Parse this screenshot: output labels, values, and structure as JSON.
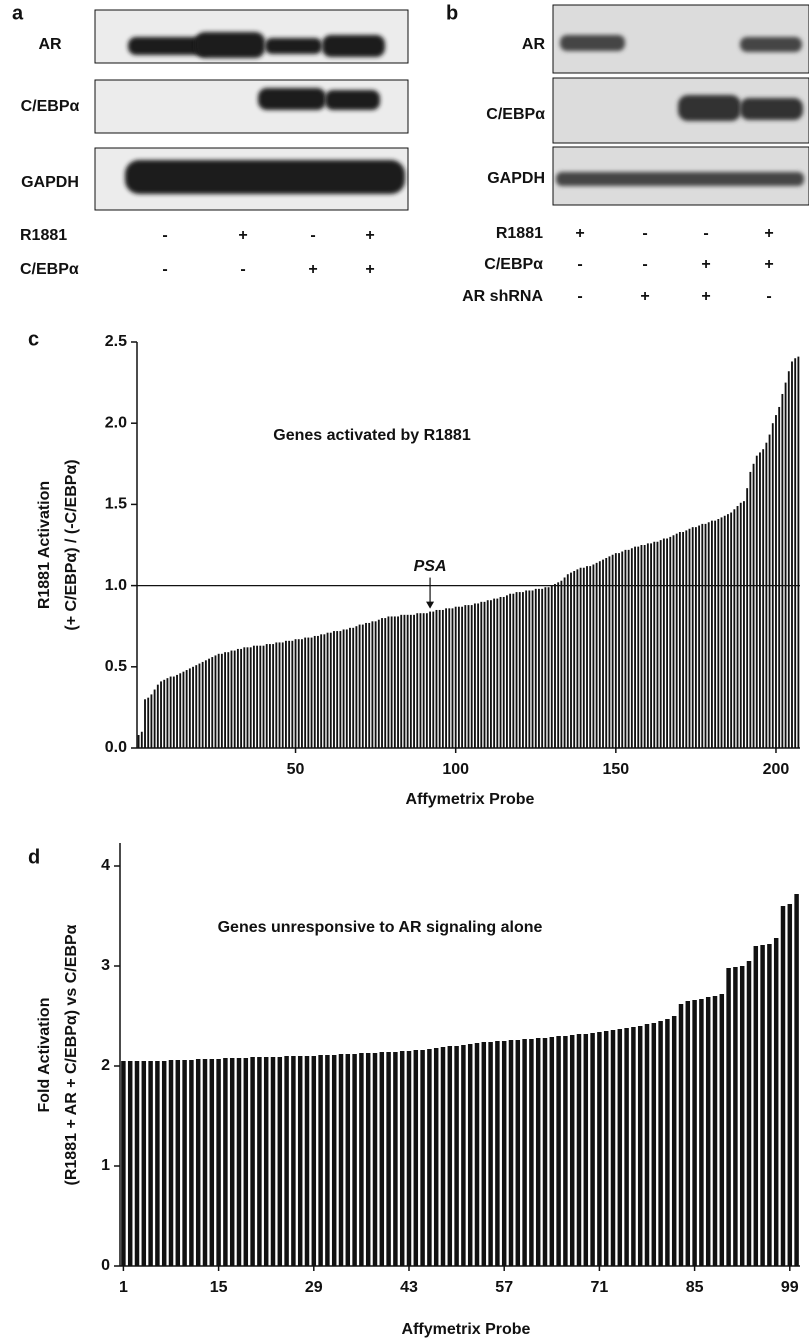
{
  "panel_a": {
    "label": "a",
    "rows": [
      "AR",
      "C/EBPα",
      "GAPDH"
    ],
    "conditions": [
      {
        "name": "R1881",
        "marks": [
          "-",
          "+",
          "-",
          "+"
        ]
      },
      {
        "name": "C/EBPα",
        "marks": [
          "-",
          "-",
          "+",
          "+"
        ]
      }
    ]
  },
  "panel_b": {
    "label": "b",
    "rows": [
      "AR",
      "C/EBPα",
      "GAPDH"
    ],
    "conditions": [
      {
        "name": "R1881",
        "marks": [
          "+",
          "-",
          "-",
          "+"
        ]
      },
      {
        "name": "C/EBPα",
        "marks": [
          "-",
          "-",
          "+",
          "+"
        ]
      },
      {
        "name": "AR shRNA",
        "marks": [
          "-",
          "+",
          "+",
          "-"
        ]
      }
    ]
  },
  "chart_data": [
    {
      "type": "bar",
      "label": "c",
      "title": "Genes activated by R1881",
      "ylabel": [
        "R1881 Activation",
        "(+ C/EBPα) / (-C/EBPα)"
      ],
      "xlabel": "Affymetrix Probe",
      "color": "#111111",
      "hline": 1,
      "annotations": [
        {
          "text": "PSA",
          "x": 92
        }
      ],
      "xlim": [
        0.5,
        207.5
      ],
      "xticks": [
        50,
        100,
        150,
        200
      ],
      "ylim": [
        0,
        2.5
      ],
      "yticks": [
        {
          "value": 0,
          "label": "0.0"
        },
        0.5,
        {
          "value": 1,
          "label": "1.0"
        },
        1.5,
        {
          "value": 2,
          "label": "2.0"
        },
        2.5
      ],
      "x": [
        1,
        2,
        3,
        4,
        5,
        6,
        7,
        8,
        9,
        10,
        11,
        12,
        13,
        14,
        15,
        16,
        17,
        18,
        19,
        20,
        21,
        22,
        23,
        24,
        25,
        26,
        27,
        28,
        29,
        30,
        31,
        32,
        33,
        34,
        35,
        36,
        37,
        38,
        39,
        40,
        41,
        42,
        43,
        44,
        45,
        46,
        47,
        48,
        49,
        50,
        51,
        52,
        53,
        54,
        55,
        56,
        57,
        58,
        59,
        60,
        61,
        62,
        63,
        64,
        65,
        66,
        67,
        68,
        69,
        70,
        71,
        72,
        73,
        74,
        75,
        76,
        77,
        78,
        79,
        80,
        81,
        82,
        83,
        84,
        85,
        86,
        87,
        88,
        89,
        90,
        91,
        92,
        93,
        94,
        95,
        96,
        97,
        98,
        99,
        100,
        101,
        102,
        103,
        104,
        105,
        106,
        107,
        108,
        109,
        110,
        111,
        112,
        113,
        114,
        115,
        116,
        117,
        118,
        119,
        120,
        121,
        122,
        123,
        124,
        125,
        126,
        127,
        128,
        129,
        130,
        131,
        132,
        133,
        134,
        135,
        136,
        137,
        138,
        139,
        140,
        141,
        142,
        143,
        144,
        145,
        146,
        147,
        148,
        149,
        150,
        151,
        152,
        153,
        154,
        155,
        156,
        157,
        158,
        159,
        160,
        161,
        162,
        163,
        164,
        165,
        166,
        167,
        168,
        169,
        170,
        171,
        172,
        173,
        174,
        175,
        176,
        177,
        178,
        179,
        180,
        181,
        182,
        183,
        184,
        185,
        186,
        187,
        188,
        189,
        190,
        191,
        192,
        193,
        194,
        195,
        196,
        197,
        198,
        199,
        200,
        201,
        202,
        203,
        204,
        205,
        206,
        207
      ],
      "values": [
        0.08,
        0.1,
        0.3,
        0.31,
        0.33,
        0.36,
        0.39,
        0.41,
        0.42,
        0.43,
        0.44,
        0.44,
        0.45,
        0.46,
        0.47,
        0.48,
        0.49,
        0.5,
        0.51,
        0.52,
        0.53,
        0.54,
        0.55,
        0.56,
        0.57,
        0.58,
        0.58,
        0.59,
        0.59,
        0.6,
        0.6,
        0.61,
        0.61,
        0.62,
        0.62,
        0.62,
        0.63,
        0.63,
        0.63,
        0.63,
        0.64,
        0.64,
        0.64,
        0.65,
        0.65,
        0.65,
        0.66,
        0.66,
        0.66,
        0.67,
        0.67,
        0.67,
        0.68,
        0.68,
        0.68,
        0.69,
        0.69,
        0.7,
        0.7,
        0.71,
        0.71,
        0.72,
        0.72,
        0.72,
        0.73,
        0.73,
        0.74,
        0.74,
        0.75,
        0.76,
        0.76,
        0.77,
        0.77,
        0.78,
        0.78,
        0.79,
        0.8,
        0.8,
        0.81,
        0.81,
        0.81,
        0.81,
        0.82,
        0.82,
        0.82,
        0.82,
        0.82,
        0.83,
        0.83,
        0.83,
        0.83,
        0.84,
        0.84,
        0.85,
        0.85,
        0.85,
        0.86,
        0.86,
        0.86,
        0.87,
        0.87,
        0.87,
        0.88,
        0.88,
        0.88,
        0.89,
        0.89,
        0.9,
        0.9,
        0.91,
        0.91,
        0.92,
        0.92,
        0.93,
        0.93,
        0.94,
        0.95,
        0.95,
        0.96,
        0.96,
        0.96,
        0.97,
        0.97,
        0.97,
        0.98,
        0.98,
        0.98,
        0.99,
        0.99,
        1.0,
        1.01,
        1.02,
        1.03,
        1.05,
        1.07,
        1.08,
        1.09,
        1.1,
        1.11,
        1.11,
        1.12,
        1.12,
        1.13,
        1.14,
        1.15,
        1.16,
        1.17,
        1.18,
        1.19,
        1.2,
        1.2,
        1.21,
        1.22,
        1.22,
        1.23,
        1.24,
        1.24,
        1.25,
        1.25,
        1.26,
        1.26,
        1.27,
        1.27,
        1.28,
        1.29,
        1.29,
        1.3,
        1.31,
        1.32,
        1.33,
        1.33,
        1.34,
        1.35,
        1.36,
        1.36,
        1.37,
        1.38,
        1.38,
        1.39,
        1.4,
        1.4,
        1.41,
        1.42,
        1.43,
        1.44,
        1.45,
        1.47,
        1.49,
        1.51,
        1.52,
        1.6,
        1.7,
        1.75,
        1.8,
        1.82,
        1.84,
        1.88,
        1.93,
        2.0,
        2.05,
        2.1,
        2.18,
        2.25,
        2.32,
        2.38,
        2.4,
        2.41
      ]
    },
    {
      "type": "bar",
      "label": "d",
      "title": "Genes unresponsive to AR signaling alone",
      "ylabel": [
        "Fold Activation",
        "(R1881 + AR + C/EBPα) vs C/EBPα"
      ],
      "xlabel": "Affymetrix Probe",
      "color": "#111111",
      "xlim": [
        0.5,
        100.5
      ],
      "xticks": [
        1,
        15,
        29,
        43,
        57,
        71,
        85,
        99
      ],
      "ylim": [
        0,
        4.23
      ],
      "yticks": [
        0,
        1,
        2,
        3,
        4
      ],
      "x": [
        1,
        2,
        3,
        4,
        5,
        6,
        7,
        8,
        9,
        10,
        11,
        12,
        13,
        14,
        15,
        16,
        17,
        18,
        19,
        20,
        21,
        22,
        23,
        24,
        25,
        26,
        27,
        28,
        29,
        30,
        31,
        32,
        33,
        34,
        35,
        36,
        37,
        38,
        39,
        40,
        41,
        42,
        43,
        44,
        45,
        46,
        47,
        48,
        49,
        50,
        51,
        52,
        53,
        54,
        55,
        56,
        57,
        58,
        59,
        60,
        61,
        62,
        63,
        64,
        65,
        66,
        67,
        68,
        69,
        70,
        71,
        72,
        73,
        74,
        75,
        76,
        77,
        78,
        79,
        80,
        81,
        82,
        83,
        84,
        85,
        86,
        87,
        88,
        89,
        90,
        91,
        92,
        93,
        94,
        95,
        96,
        97,
        98,
        99,
        100
      ],
      "values": [
        2.05,
        2.05,
        2.05,
        2.05,
        2.05,
        2.05,
        2.05,
        2.06,
        2.06,
        2.06,
        2.06,
        2.07,
        2.07,
        2.07,
        2.07,
        2.08,
        2.08,
        2.08,
        2.08,
        2.09,
        2.09,
        2.09,
        2.09,
        2.09,
        2.1,
        2.1,
        2.1,
        2.1,
        2.1,
        2.11,
        2.11,
        2.11,
        2.12,
        2.12,
        2.12,
        2.13,
        2.13,
        2.13,
        2.14,
        2.14,
        2.14,
        2.15,
        2.15,
        2.16,
        2.16,
        2.17,
        2.18,
        2.19,
        2.2,
        2.2,
        2.21,
        2.22,
        2.23,
        2.24,
        2.24,
        2.25,
        2.25,
        2.26,
        2.26,
        2.27,
        2.27,
        2.28,
        2.28,
        2.29,
        2.3,
        2.3,
        2.31,
        2.32,
        2.32,
        2.33,
        2.34,
        2.35,
        2.36,
        2.37,
        2.38,
        2.39,
        2.4,
        2.42,
        2.43,
        2.45,
        2.47,
        2.5,
        2.62,
        2.65,
        2.66,
        2.67,
        2.69,
        2.7,
        2.72,
        2.98,
        2.99,
        3.0,
        3.05,
        3.2,
        3.21,
        3.22,
        3.28,
        3.6,
        3.62,
        3.72
      ]
    }
  ]
}
